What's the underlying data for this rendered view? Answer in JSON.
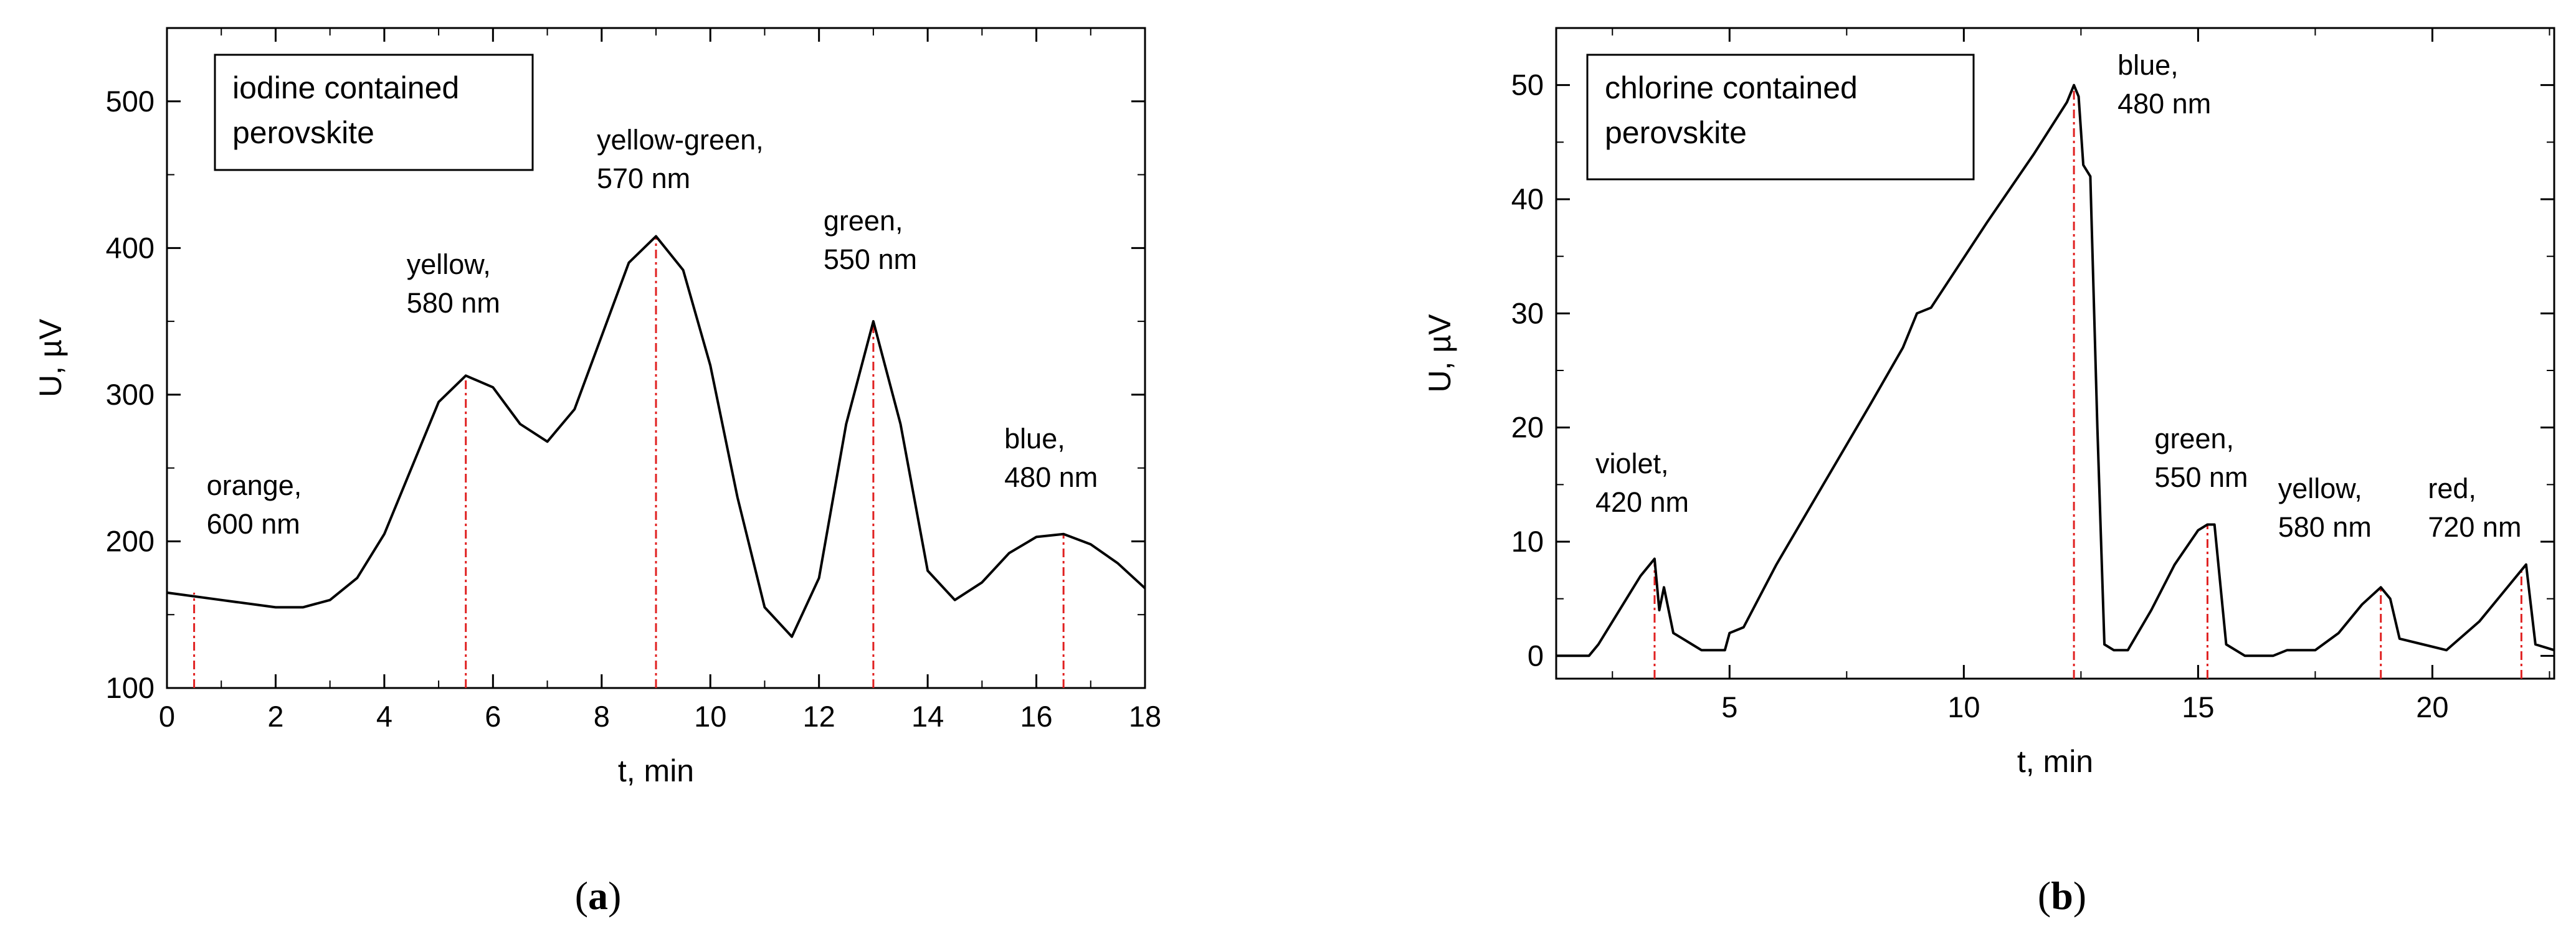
{
  "chart_data": [
    {
      "id": "a",
      "type": "line",
      "caption_letter": "a",
      "legend": [
        "iodine contained",
        "perovskite"
      ],
      "xlabel": "t,  min",
      "ylabel_prefix": "U, ",
      "ylabel_unit": "µV",
      "xlim": [
        0,
        18
      ],
      "ylim": [
        100,
        550
      ],
      "xticks": [
        0,
        2,
        4,
        6,
        8,
        10,
        12,
        14,
        16,
        18
      ],
      "yticks": [
        100,
        200,
        300,
        400,
        500
      ],
      "series": [
        {
          "name": "signal",
          "x": [
            0,
            1,
            2,
            2.5,
            3,
            3.5,
            4,
            4.5,
            5,
            5.5,
            6,
            6.5,
            7,
            7.5,
            8,
            8.5,
            9,
            9.5,
            10,
            10.5,
            11,
            11.5,
            12,
            12.5,
            13,
            13.5,
            14,
            14.5,
            15,
            15.5,
            16,
            16.5,
            17,
            17.5,
            18
          ],
          "y": [
            165,
            160,
            155,
            155,
            160,
            175,
            205,
            250,
            295,
            313,
            305,
            280,
            268,
            290,
            340,
            390,
            408,
            385,
            320,
            230,
            155,
            135,
            175,
            280,
            350,
            280,
            180,
            160,
            172,
            192,
            203,
            205,
            198,
            185,
            168
          ]
        }
      ],
      "annotations": [
        {
          "lines": [
            "orange,",
            "600 nm"
          ],
          "x": 0.5,
          "peak_y": 165
        },
        {
          "lines": [
            "yellow,",
            "580 nm"
          ],
          "x": 5.5,
          "peak_y": 313
        },
        {
          "lines": [
            "yellow-green,",
            "570 nm"
          ],
          "x": 9,
          "peak_y": 408
        },
        {
          "lines": [
            "green,",
            "550 nm"
          ],
          "x": 13,
          "peak_y": 350
        },
        {
          "lines": [
            "blue,",
            "480 nm"
          ],
          "x": 16.5,
          "peak_y": 205
        }
      ]
    },
    {
      "id": "b",
      "type": "line",
      "caption_letter": "b",
      "legend": [
        "chlorine contained",
        "perovskite"
      ],
      "xlabel": "t,  min",
      "ylabel_prefix": "U, ",
      "ylabel_unit": "µV",
      "xlim": [
        1.3,
        22.6
      ],
      "ylim": [
        -2,
        55
      ],
      "xticks": [
        5,
        10,
        15,
        20
      ],
      "yticks": [
        0,
        10,
        20,
        30,
        40,
        50
      ],
      "series": [
        {
          "name": "signal",
          "x": [
            1.3,
            2.0,
            2.2,
            2.5,
            2.8,
            3.1,
            3.3,
            3.4,
            3.5,
            3.6,
            3.8,
            4.0,
            4.2,
            4.4,
            4.6,
            4.9,
            5.0,
            5.3,
            6.0,
            7.0,
            8.0,
            8.7,
            9.0,
            9.3,
            9.7,
            10.5,
            11.5,
            12.2,
            12.35,
            12.45,
            12.55,
            12.7,
            12.85,
            13.0,
            13.2,
            13.5,
            14.0,
            14.5,
            15.0,
            15.2,
            15.35,
            15.6,
            16.0,
            16.6,
            16.9,
            17.2,
            17.5,
            18.0,
            18.5,
            18.9,
            19.1,
            19.3,
            19.8,
            20.3,
            21.0,
            21.5,
            21.9,
            22.0,
            22.2,
            22.6
          ],
          "y": [
            0,
            0,
            1,
            3,
            5,
            7,
            8,
            8.5,
            4,
            6,
            2,
            1.5,
            1,
            0.5,
            0.5,
            0.5,
            2,
            2.5,
            8,
            15,
            22,
            27,
            30,
            30.5,
            33,
            38,
            44,
            48.5,
            50,
            49,
            43,
            42,
            20,
            1,
            0.5,
            0.5,
            4,
            8,
            11,
            11.5,
            11.5,
            1,
            0,
            0,
            0.5,
            0.5,
            0.5,
            2,
            4.5,
            6,
            5,
            1.5,
            1,
            0.5,
            3,
            5.5,
            7.5,
            8,
            1,
            0.5
          ]
        }
      ],
      "annotations": [
        {
          "lines": [
            "violet,",
            "420 nm"
          ],
          "x": 3.4,
          "peak_y": 8.5
        },
        {
          "lines": [
            "blue,",
            "480 nm"
          ],
          "x": 12.35,
          "peak_y": 50
        },
        {
          "lines": [
            "green,",
            "550 nm"
          ],
          "x": 15.2,
          "peak_y": 11.5
        },
        {
          "lines": [
            "yellow,",
            "580 nm"
          ],
          "x": 18.9,
          "peak_y": 6
        },
        {
          "lines": [
            "red,",
            "720 nm"
          ],
          "x": 21.9,
          "peak_y": 7.5
        }
      ]
    }
  ]
}
